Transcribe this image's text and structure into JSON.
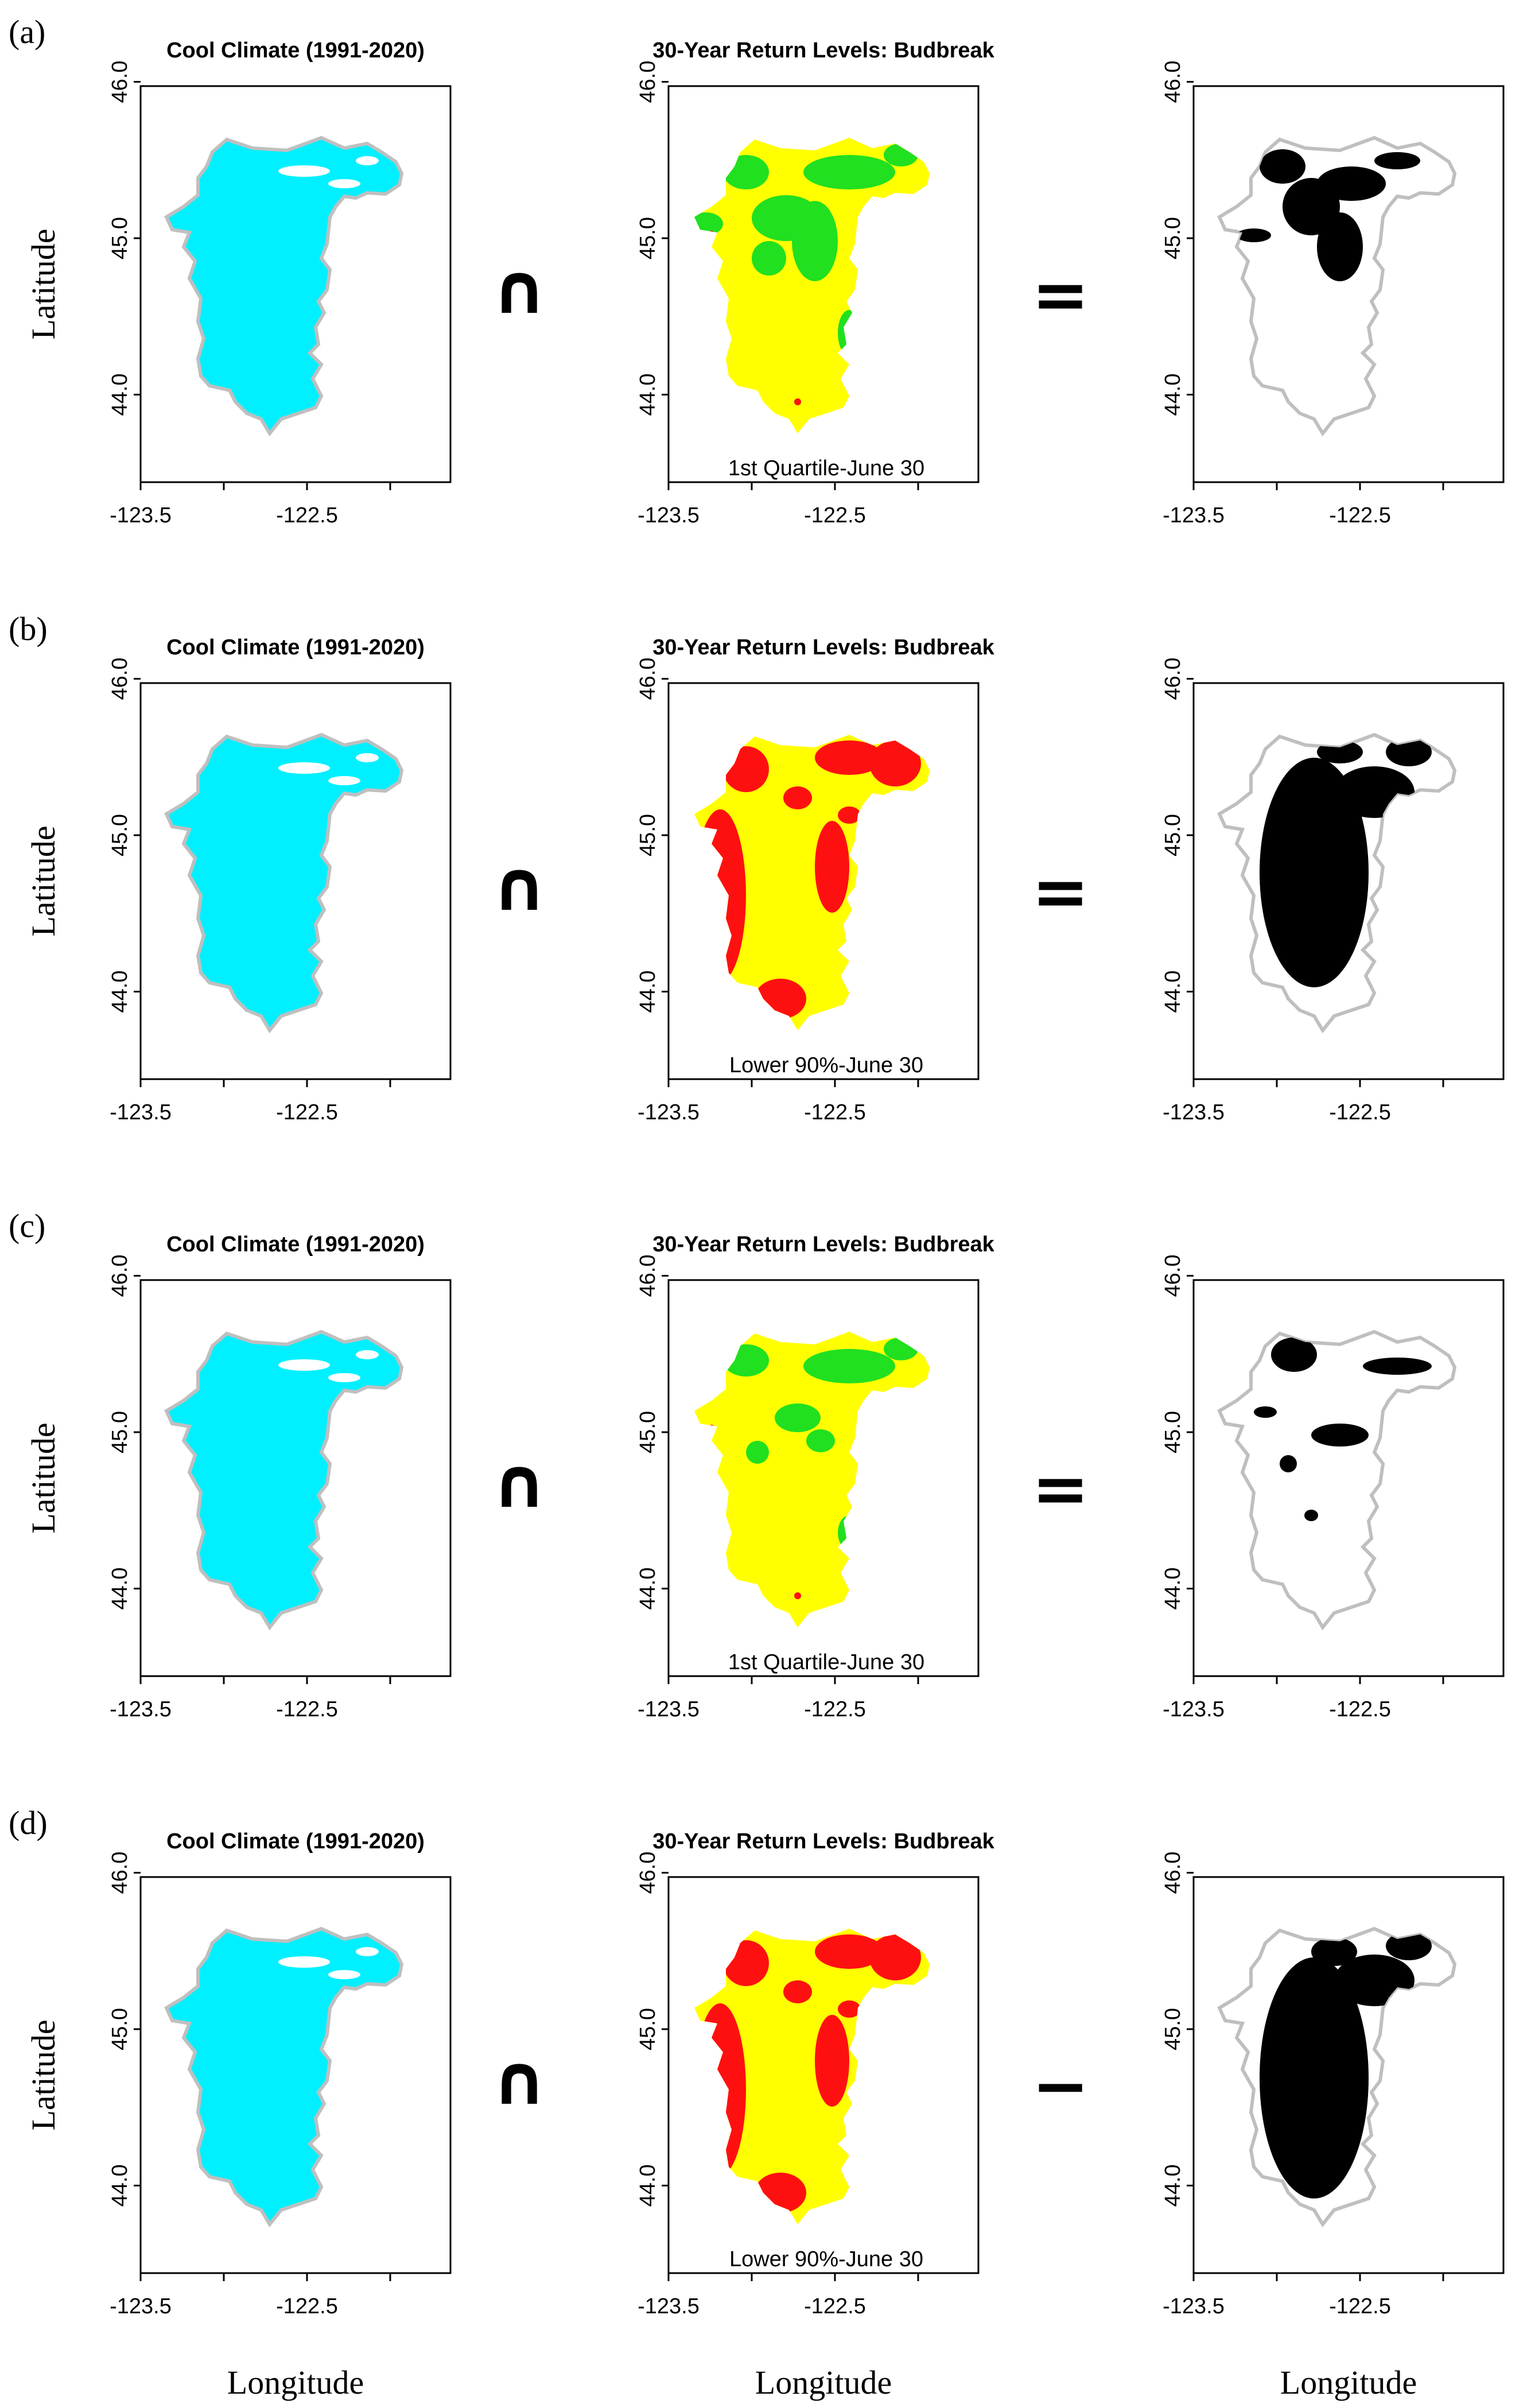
{
  "figure": {
    "rows": [
      {
        "label": "(a)",
        "operators": [
          "∩",
          "="
        ],
        "middle_map": "quartile",
        "middle_note": "1st Quartile-June 30"
      },
      {
        "label": "(b)",
        "operators": [
          "∩",
          "="
        ],
        "middle_map": "lower90",
        "middle_note": "Lower 90%-June 30"
      },
      {
        "label": "(c)",
        "operators": [
          "∩",
          "="
        ],
        "middle_map": "quartile",
        "middle_note": "1st Quartile-June 30"
      },
      {
        "label": "(d)",
        "operators": [
          "∩",
          "−"
        ],
        "middle_map": "lower90",
        "middle_note": "Lower 90%-June 30"
      }
    ],
    "titles": {
      "left": "Cool Climate (1991-2020)",
      "middle": "30-Year Return Levels: Budbreak",
      "right": ""
    },
    "axis_labels": {
      "x": "Longitude",
      "y": "Latitude"
    }
  },
  "chart_data": {
    "type": "map",
    "x_ticks": [
      "-123.5",
      "-122.5"
    ],
    "y_ticks": [
      "44.0",
      "45.0",
      "46.0"
    ],
    "colors": {
      "region_outline": "#bfbfbf",
      "cool_climate": "#00f0ff",
      "early": "#20e020",
      "mid": "#ffff00",
      "late": "#ff1010",
      "intersection": "#000000"
    }
  }
}
